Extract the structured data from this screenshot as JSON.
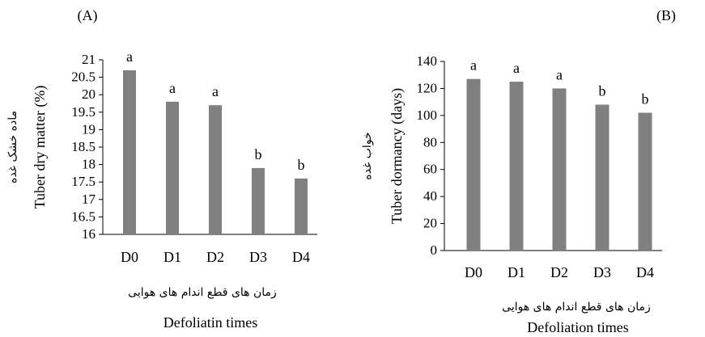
{
  "chart_data": [
    {
      "type": "bar",
      "panel": "(A)",
      "categories": [
        "D0",
        "D1",
        "D2",
        "D3",
        "D4"
      ],
      "values": [
        20.7,
        19.8,
        19.7,
        17.9,
        17.6
      ],
      "significance": [
        "a",
        "a",
        "a",
        "b",
        "b"
      ],
      "ylabel": "Tuber dry matter (%)",
      "ylabel_fa": "ماده خشک غده",
      "xlabel": "Defoliatin times",
      "xlabel_fa": "زمان های  قطع اندام های هوایی",
      "ylim": [
        16,
        21
      ],
      "yticks": [
        "16",
        "16.5",
        "17",
        "17.5",
        "18",
        "18.5",
        "19",
        "19.5",
        "20",
        "20.5",
        "21"
      ],
      "grid": false,
      "bar_color": "#808080"
    },
    {
      "type": "bar",
      "panel": "(B)",
      "categories": [
        "D0",
        "D1",
        "D2",
        "D3",
        "D4"
      ],
      "values": [
        127,
        125,
        120,
        108,
        102
      ],
      "significance": [
        "a",
        "a",
        "a",
        "b",
        "b"
      ],
      "ylabel": "Tuber dormancy (days)",
      "ylabel_fa": "خواب غده",
      "xlabel": "Defoliation times",
      "xlabel_fa": "زمان های قطع اندام های هوایی",
      "ylim": [
        0,
        140
      ],
      "yticks": [
        "0",
        "20",
        "40",
        "60",
        "80",
        "100",
        "120",
        "140"
      ],
      "grid": false,
      "bar_color": "#808080"
    }
  ]
}
